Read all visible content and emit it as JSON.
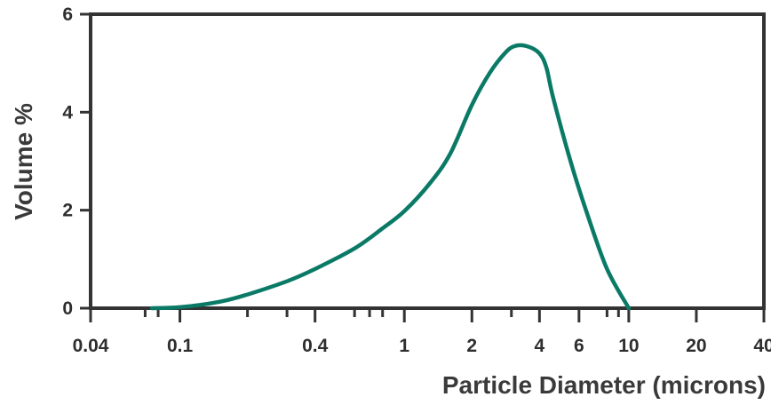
{
  "chart_data": {
    "type": "line",
    "xlabel": "Particle Diameter (microns)",
    "ylabel": "Volume %",
    "x_scale": "log",
    "xlim": [
      0.04,
      40
    ],
    "ylim": [
      0,
      6
    ],
    "grid": false,
    "line_color": "#0a7a66",
    "x_tick_labels": [
      "0.04",
      "0.1",
      "0.4",
      "1",
      "2",
      "4",
      "6",
      "10",
      "20",
      "40"
    ],
    "y_tick_labels": [
      "0",
      "2",
      "4",
      "6"
    ],
    "series": [
      {
        "x": [
          0.075,
          0.1,
          0.15,
          0.2,
          0.3,
          0.4,
          0.6,
          0.8,
          1.0,
          1.3,
          1.6,
          2.0,
          2.4,
          2.8,
          3.1,
          3.5,
          4.0,
          4.3,
          4.6,
          5.5,
          6.5,
          8.0,
          10.0
        ],
        "y": [
          0.0,
          0.02,
          0.13,
          0.28,
          0.55,
          0.8,
          1.22,
          1.63,
          1.98,
          2.55,
          3.15,
          4.15,
          4.8,
          5.2,
          5.35,
          5.35,
          5.2,
          4.9,
          4.3,
          3.0,
          1.95,
          0.8,
          0.0
        ]
      }
    ]
  }
}
